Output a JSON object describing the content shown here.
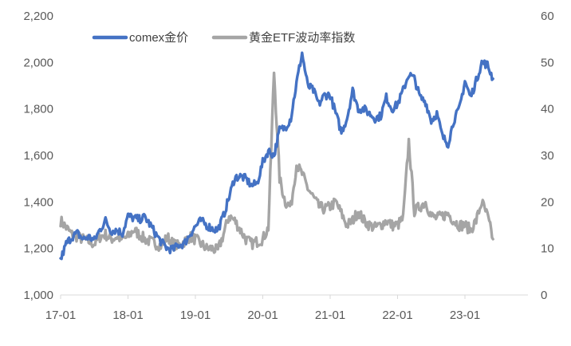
{
  "chart_data": {
    "type": "line",
    "title": "",
    "xlabel": "",
    "ylabel": "",
    "y_left": {
      "min": 1000,
      "max": 2200,
      "ticks": [
        "1,000",
        "1,200",
        "1,400",
        "1,600",
        "1,800",
        "2,000",
        "2,200"
      ]
    },
    "y_right": {
      "min": 0,
      "max": 60,
      "ticks": [
        "0",
        "10",
        "20",
        "30",
        "40",
        "50",
        "60"
      ]
    },
    "x_ticks": [
      "17-01",
      "18-01",
      "19-01",
      "20-01",
      "21-01",
      "22-01",
      "23-01"
    ],
    "x_start": "2017-01",
    "x_end": "2023-06",
    "grid": false,
    "legend_position": "top-left",
    "colors": {
      "gold": "#4472c4",
      "vol": "#a5a5a5",
      "axis": "#d9d9d9",
      "text": "#595959"
    },
    "series": [
      {
        "name": "comex金价",
        "axis": "left",
        "x": [
          "2017-01",
          "2017-02",
          "2017-03",
          "2017-04",
          "2017-05",
          "2017-06",
          "2017-07",
          "2017-08",
          "2017-09",
          "2017-10",
          "2017-11",
          "2017-12",
          "2018-01",
          "2018-02",
          "2018-03",
          "2018-04",
          "2018-05",
          "2018-06",
          "2018-07",
          "2018-08",
          "2018-09",
          "2018-10",
          "2018-11",
          "2018-12",
          "2019-01",
          "2019-02",
          "2019-03",
          "2019-04",
          "2019-05",
          "2019-06",
          "2019-07",
          "2019-08",
          "2019-09",
          "2019-10",
          "2019-11",
          "2019-12",
          "2020-01",
          "2020-02",
          "2020-03",
          "2020-04",
          "2020-05",
          "2020-06",
          "2020-07",
          "2020-08",
          "2020-09",
          "2020-10",
          "2020-11",
          "2020-12",
          "2021-01",
          "2021-02",
          "2021-03",
          "2021-04",
          "2021-05",
          "2021-06",
          "2021-07",
          "2021-08",
          "2021-09",
          "2021-10",
          "2021-11",
          "2021-12",
          "2022-01",
          "2022-02",
          "2022-03",
          "2022-04",
          "2022-05",
          "2022-06",
          "2022-07",
          "2022-08",
          "2022-09",
          "2022-10",
          "2022-11",
          "2022-12",
          "2023-01",
          "2023-02",
          "2023-03",
          "2023-04",
          "2023-05",
          "2023-06"
        ],
        "values": [
          1150,
          1220,
          1250,
          1265,
          1240,
          1250,
          1235,
          1280,
          1320,
          1275,
          1280,
          1265,
          1340,
          1330,
          1325,
          1335,
          1300,
          1260,
          1225,
          1200,
          1195,
          1215,
          1220,
          1260,
          1295,
          1320,
          1300,
          1285,
          1280,
          1340,
          1420,
          1505,
          1510,
          1500,
          1470,
          1480,
          1570,
          1620,
          1600,
          1710,
          1720,
          1760,
          1910,
          2040,
          1900,
          1880,
          1820,
          1860,
          1860,
          1780,
          1700,
          1760,
          1880,
          1800,
          1800,
          1780,
          1760,
          1770,
          1850,
          1800,
          1820,
          1880,
          1950,
          1930,
          1850,
          1830,
          1750,
          1780,
          1680,
          1650,
          1750,
          1800,
          1920,
          1850,
          1920,
          2000,
          1990,
          1930
        ]
      },
      {
        "name": "黄金ETF波动率指数",
        "axis": "right",
        "x": [
          "2017-01",
          "2017-02",
          "2017-03",
          "2017-04",
          "2017-05",
          "2017-06",
          "2017-07",
          "2017-08",
          "2017-09",
          "2017-10",
          "2017-11",
          "2017-12",
          "2018-01",
          "2018-02",
          "2018-03",
          "2018-04",
          "2018-05",
          "2018-06",
          "2018-07",
          "2018-08",
          "2018-09",
          "2018-10",
          "2018-11",
          "2018-12",
          "2019-01",
          "2019-02",
          "2019-03",
          "2019-04",
          "2019-05",
          "2019-06",
          "2019-07",
          "2019-08",
          "2019-09",
          "2019-10",
          "2019-11",
          "2019-12",
          "2020-01",
          "2020-02",
          "2020-03",
          "2020-04",
          "2020-05",
          "2020-06",
          "2020-07",
          "2020-08",
          "2020-09",
          "2020-10",
          "2020-11",
          "2020-12",
          "2021-01",
          "2021-02",
          "2021-03",
          "2021-04",
          "2021-05",
          "2021-06",
          "2021-07",
          "2021-08",
          "2021-09",
          "2021-10",
          "2021-11",
          "2021-12",
          "2022-01",
          "2022-02",
          "2022-03",
          "2022-04",
          "2022-05",
          "2022-06",
          "2022-07",
          "2022-08",
          "2022-09",
          "2022-10",
          "2022-11",
          "2022-12",
          "2023-01",
          "2023-02",
          "2023-03",
          "2023-04",
          "2023-05",
          "2023-06"
        ],
        "values": [
          16,
          14.5,
          13,
          12.5,
          12,
          11.5,
          11,
          12.5,
          13,
          12,
          12.5,
          12,
          12.5,
          14,
          13,
          12,
          11.5,
          11,
          10.5,
          12.5,
          11,
          10.5,
          11.5,
          12.5,
          12,
          11,
          10,
          10,
          9.5,
          13,
          17,
          16,
          14,
          12,
          11,
          11.5,
          12,
          14.5,
          48,
          25,
          20,
          19,
          28,
          26,
          23,
          21,
          19,
          18.5,
          19,
          20,
          17.5,
          15,
          16,
          18,
          16,
          15,
          14.5,
          15,
          16,
          15,
          15,
          16.5,
          33,
          18,
          19,
          20,
          17,
          16.5,
          17,
          17.5,
          16,
          15,
          15,
          14,
          16,
          20,
          17,
          12
        ]
      }
    ]
  }
}
